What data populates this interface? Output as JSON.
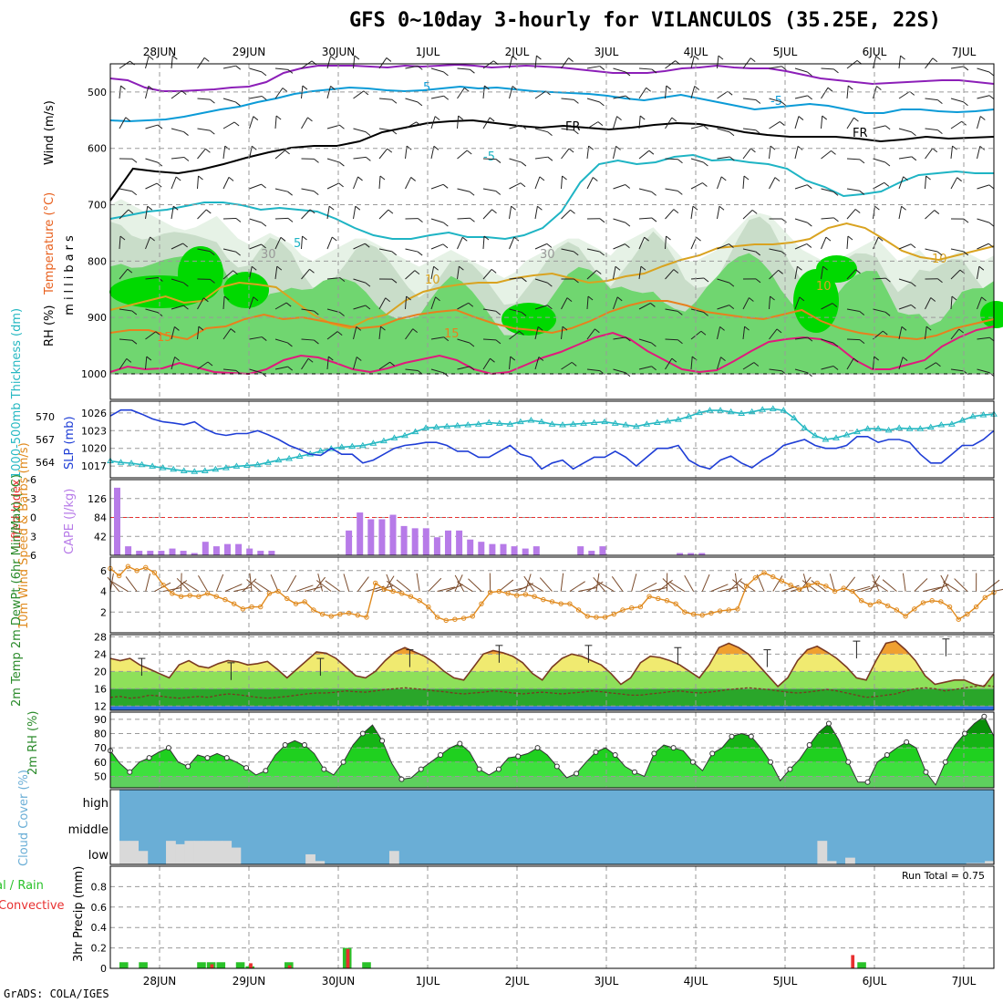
{
  "title": "GFS 0~10day 3-hourly for VILANCULOS (35.25E, 22S)",
  "credit": "GrADS: COLA/IGES",
  "dates": [
    "28JUN",
    "29JUN",
    "30JUN",
    "1JUL",
    "2JUL",
    "3JUL",
    "4JUL",
    "5JUL",
    "6JUL",
    "7JUL"
  ],
  "colors": {
    "rh_dark": "#00d900",
    "rh_mid": "#70d670",
    "rh_light": "#c9ddc9",
    "rh_pale": "#e6f2e6",
    "temp_purple": "#8c1fb8",
    "temp_blue": "#0b9bd7",
    "temp_cyan": "#1eb4c4",
    "temp_orange": "#e8801e",
    "temp_gold": "#d9a320",
    "temp_magenta": "#e0197d",
    "slp": "#1f3ed6",
    "thickness": "#26b8c2",
    "cape": "#b77be8",
    "lifted": "#e83030",
    "wind10": "#e08a1e",
    "cloud": "#6aaed6",
    "lowcloud": "#d9d9d9",
    "precip_total": "#29c229",
    "precip_conv": "#e83030"
  },
  "chart_data": [
    {
      "type": "heatmap",
      "panel": "upper-air",
      "ylabel_parts": [
        "RH (%)",
        "Temperature (°C)",
        "Wind (m/s)"
      ],
      "yunit": "millibars",
      "y_ticks": [
        500,
        600,
        700,
        800,
        900,
        1000
      ],
      "ylim": [
        450,
        1000
      ],
      "contour_labels": [
        "5",
        "-5",
        "FR",
        "FR",
        "-5",
        "5",
        "10",
        "15",
        "10",
        "15",
        "10",
        "30",
        "30"
      ]
    },
    {
      "type": "line",
      "panel": "slp-thickness",
      "ylabel_left": "1000-500mb Thickness (dm)",
      "ylabel_right": "SLP (mb)",
      "left_ticks": [
        564,
        567,
        570
      ],
      "right_ticks": [
        1017,
        1020,
        1023,
        1026
      ],
      "series": [
        {
          "name": "SLP",
          "values": [
            1025.5,
            1026.5,
            1026.5,
            1025.8,
            1025.0,
            1024.5,
            1024.3,
            1024.0,
            1024.5,
            1023.3,
            1022.5,
            1022.2,
            1022.5,
            1022.5,
            1023.0,
            1022.3,
            1021.5,
            1020.5,
            1019.8,
            1019.0,
            1018.8,
            1020.0,
            1019.0,
            1019.0,
            1017.5,
            1018.0,
            1019.0,
            1020.0,
            1020.5,
            1020.7,
            1021.0,
            1021.0,
            1020.5,
            1019.5,
            1019.5,
            1018.5,
            1018.5,
            1019.5,
            1020.5,
            1019.0,
            1018.5,
            1016.5,
            1017.5,
            1018.0,
            1016.5,
            1017.5,
            1018.5,
            1018.5,
            1019.5,
            1018.5,
            1017.0,
            1018.5,
            1020.0,
            1020.0,
            1020.5,
            1018.0,
            1017.0,
            1016.5,
            1018.0,
            1018.7,
            1017.5,
            1016.7,
            1018.0,
            1019.0,
            1020.5,
            1021.0,
            1021.5,
            1020.5,
            1020.0,
            1020.0,
            1020.5,
            1022.0,
            1022.0,
            1021.0,
            1021.5,
            1021.5,
            1021.0,
            1019.0,
            1017.5,
            1017.5,
            1019.0,
            1020.5,
            1020.5,
            1021.5,
            1023.0
          ]
        },
        {
          "name": "Thickness",
          "values": [
            564.2,
            564.0,
            563.9,
            563.7,
            563.5,
            563.3,
            563.1,
            562.9,
            562.8,
            562.9,
            563.1,
            563.3,
            563.5,
            563.6,
            563.7,
            564.0,
            564.3,
            564.5,
            564.8,
            565.1,
            565.5,
            565.8,
            566.0,
            566.1,
            566.2,
            566.5,
            566.8,
            567.2,
            567.5,
            568.0,
            568.5,
            568.6,
            568.7,
            568.8,
            568.9,
            569.0,
            569.2,
            569.1,
            569.0,
            569.3,
            569.5,
            569.3,
            569.0,
            568.9,
            569.0,
            569.1,
            569.2,
            569.3,
            569.1,
            568.9,
            568.7,
            569.0,
            569.2,
            569.4,
            569.6,
            570.0,
            570.5,
            570.8,
            570.8,
            570.6,
            570.4,
            570.6,
            570.9,
            571.0,
            570.8,
            569.8,
            568.5,
            567.5,
            567.0,
            567.2,
            567.6,
            568.0,
            568.4,
            568.4,
            568.2,
            568.5,
            568.4,
            568.4,
            568.6,
            568.9,
            569.0,
            569.5,
            570.0,
            570.2,
            570.3
          ]
        }
      ]
    },
    {
      "type": "bar",
      "panel": "cape-li",
      "ylabel_left": "Lifted Index",
      "ylabel_right": "CAPE (J/kg)",
      "left_ticks": [
        -6,
        -3,
        0,
        3,
        6
      ],
      "right_ticks": [
        42,
        84,
        126
      ],
      "cape_values": [
        150,
        20,
        10,
        10,
        10,
        15,
        10,
        5,
        30,
        20,
        25,
        25,
        15,
        10,
        10,
        0,
        0,
        0,
        0,
        0,
        0,
        55,
        95,
        80,
        80,
        90,
        65,
        60,
        60,
        40,
        55,
        55,
        35,
        30,
        25,
        25,
        20,
        15,
        20,
        0,
        0,
        0,
        20,
        10,
        20,
        0,
        0,
        0,
        0,
        0,
        0,
        5,
        5,
        5,
        0,
        0,
        0,
        0,
        0,
        0,
        0,
        0,
        0,
        0,
        0,
        0,
        0,
        0,
        0,
        0,
        0,
        0,
        0,
        0,
        0,
        0,
        0,
        0,
        0,
        0,
        0,
        0,
        0,
        0,
        0,
        0,
        0,
        0,
        0,
        0,
        0,
        0,
        0,
        0,
        0,
        0,
        0,
        0,
        0,
        0,
        0,
        0,
        0,
        0,
        0,
        0,
        0,
        0,
        0,
        0,
        0,
        0,
        0,
        0,
        0,
        0,
        0,
        0,
        0,
        0,
        0,
        0,
        25,
        20,
        0,
        0,
        0,
        0,
        0,
        0,
        0,
        0,
        0,
        0,
        0,
        0,
        0,
        0,
        0,
        0,
        0,
        0,
        0,
        0,
        0,
        0,
        0,
        0,
        0,
        0,
        0,
        0,
        0,
        0
      ],
      "li_events": [
        {
          "x": 21.0,
          "peak": 3.3
        },
        {
          "x": 21.4,
          "peak": 3.3
        },
        {
          "x": 22.0,
          "peak": 2.8
        }
      ]
    },
    {
      "type": "line",
      "panel": "wind10",
      "ylabel": "10m Wind Speed & Barbs (m/s)",
      "y_ticks": [
        2,
        4,
        6
      ],
      "ylim": [
        0,
        7
      ],
      "series": [
        {
          "name": "10m Wind Speed",
          "values": [
            6.2,
            5.5,
            6.4,
            6.0,
            6.3,
            5.8,
            4.6,
            3.8,
            3.5,
            3.6,
            3.5,
            3.8,
            3.5,
            3.2,
            2.8,
            2.3,
            2.5,
            2.5,
            3.8,
            4.0,
            3.3,
            2.8,
            3.0,
            2.2,
            1.8,
            1.6,
            1.8,
            1.9,
            1.7,
            1.5,
            4.8,
            4.2,
            4.0,
            3.8,
            3.5,
            3.1,
            2.5,
            1.5,
            1.2,
            1.3,
            1.4,
            1.6,
            2.8,
            3.9,
            4.0,
            3.8,
            3.6,
            3.7,
            3.5,
            3.2,
            3.0,
            2.8,
            2.8,
            2.2,
            1.6,
            1.5,
            1.5,
            1.8,
            2.2,
            2.4,
            2.5,
            3.5,
            3.3,
            3.1,
            2.8,
            2.0,
            1.8,
            1.7,
            1.9,
            2.1,
            2.2,
            2.3,
            4.5,
            5.3,
            5.8,
            5.4,
            5.0,
            4.6,
            4.2,
            4.6,
            4.8,
            4.5,
            4.0,
            4.3,
            4.0,
            3.1,
            2.7,
            3.0,
            2.6,
            2.2,
            1.6,
            2.3,
            2.9,
            3.1,
            3.0,
            2.5,
            1.3,
            1.8,
            2.5,
            3.4,
            3.9
          ]
        }
      ]
    },
    {
      "type": "area",
      "panel": "temp2m",
      "ylabel": "2m Temp 2m DewPt (6hr Min/Max) (°C)",
      "y_ticks": [
        12,
        16,
        20,
        24,
        28
      ],
      "ylim": [
        11,
        28.5
      ],
      "series": [
        {
          "name": "2m Temp",
          "values": [
            23,
            22.5,
            23,
            21.5,
            20.5,
            19.5,
            18.5,
            21.5,
            22.5,
            21.2,
            20.8,
            21.8,
            22.5,
            22.2,
            21.5,
            21.8,
            22.3,
            20.5,
            18.5,
            20.5,
            22.5,
            24.5,
            24.2,
            23.0,
            21.0,
            19.0,
            18.5,
            20.0,
            22.5,
            24.5,
            25.5,
            24.5,
            23.5,
            22.0,
            20.0,
            18.5,
            18.0,
            21.0,
            24.0,
            24.8,
            24.3,
            23.5,
            22.0,
            19.5,
            18.0,
            21.0,
            23.0,
            24.0,
            23.5,
            22.5,
            21.5,
            19.5,
            17.0,
            18.5,
            22.0,
            23.5,
            23.2,
            22.5,
            21.5,
            20.0,
            18.5,
            21.5,
            25.5,
            26.5,
            25.5,
            24.0,
            21.5,
            19.0,
            16.5,
            18.5,
            22.5,
            25.0,
            25.8,
            24.5,
            23.0,
            21.0,
            18.5,
            18.0,
            22.5,
            26.5,
            27.0,
            25.0,
            22.5,
            19.0,
            17.0,
            17.5,
            18.0,
            18.0,
            17.0,
            16.5,
            19.5
          ]
        },
        {
          "name": "2m DewPt",
          "values": [
            14.0,
            14.2,
            13.8,
            14.0,
            14.5,
            14.3,
            14.0,
            13.8,
            14.0,
            14.2,
            14.0,
            14.5,
            14.8,
            14.6,
            14.3,
            14.0,
            13.8,
            14.0,
            14.2,
            14.5,
            14.8,
            15.0,
            15.0,
            15.2,
            15.5,
            15.3,
            15.2,
            15.5,
            15.8,
            16.0,
            16.2,
            16.0,
            15.8,
            15.5,
            15.3,
            15.0,
            14.8,
            15.0,
            15.2,
            15.5,
            15.3,
            15.0,
            14.8,
            15.0,
            15.2,
            15.0,
            14.8,
            15.0,
            15.2,
            15.5,
            15.3,
            15.0,
            14.8,
            14.5,
            14.5,
            14.8,
            15.0,
            15.3,
            15.5,
            15.2,
            15.0,
            15.2,
            15.5,
            15.8,
            16.0,
            16.2,
            16.0,
            15.8,
            15.5,
            15.2,
            15.0,
            15.2,
            15.5,
            15.8,
            15.5,
            15.0,
            14.5,
            14.0,
            14.2,
            14.5,
            14.8,
            15.5,
            16.0,
            16.2,
            16.0,
            15.5,
            15.8,
            16.2,
            16.5,
            16.8,
            16.5
          ]
        }
      ],
      "maxmin_bars": [
        {
          "x": 0.8,
          "hi": 23.0
        },
        {
          "x": 1.8,
          "hi": 22.0
        },
        {
          "x": 2.8,
          "hi": 23.0
        },
        {
          "x": 3.8,
          "hi": 25.0
        },
        {
          "x": 4.8,
          "hi": 26.0
        },
        {
          "x": 5.8,
          "hi": 26.0
        },
        {
          "x": 6.8,
          "hi": 25.5
        },
        {
          "x": 7.8,
          "hi": 25.0
        },
        {
          "x": 8.8,
          "hi": 27.0
        },
        {
          "x": 9.8,
          "hi": 27.5
        }
      ]
    },
    {
      "type": "area",
      "panel": "rh2m",
      "ylabel": "2m RH (%)",
      "y_ticks": [
        50,
        60,
        70,
        80,
        90
      ],
      "ylim": [
        42,
        95
      ],
      "series": [
        {
          "name": "2m RH",
          "values": [
            68,
            59,
            53,
            60,
            63,
            67,
            70,
            60,
            57,
            65,
            63,
            66,
            63,
            60,
            56,
            51,
            54,
            65,
            72,
            75,
            72,
            66,
            55,
            51,
            60,
            72,
            80,
            86,
            75,
            59,
            48,
            49,
            55,
            60,
            65,
            70,
            73,
            67,
            55,
            51,
            55,
            63,
            64,
            66,
            70,
            65,
            57,
            49,
            52,
            60,
            67,
            70,
            65,
            57,
            53,
            50,
            66,
            72,
            70,
            68,
            60,
            54,
            66,
            70,
            78,
            80,
            78,
            70,
            60,
            47,
            55,
            62,
            72,
            81,
            87,
            76,
            60,
            46,
            46,
            60,
            65,
            70,
            74,
            70,
            53,
            44,
            60,
            72,
            80,
            87,
            92,
            78
          ]
        }
      ]
    },
    {
      "type": "bar",
      "panel": "cloud",
      "ylabel": "Cloud Cover (%)",
      "y_ticks": [
        "high",
        "middle",
        "low"
      ],
      "low_cloud": [
        0.35,
        0.35,
        0.2,
        0,
        0,
        0.35,
        0.3,
        0.35,
        0.35,
        0.35,
        0.35,
        0.35,
        0.25,
        0,
        0,
        0,
        0,
        0,
        0,
        0,
        0.15,
        0.05,
        0,
        0,
        0,
        0,
        0,
        0,
        0,
        0.2,
        0,
        0,
        0,
        0,
        0,
        0,
        0,
        0,
        0,
        0,
        0,
        0,
        0,
        0,
        0,
        0,
        0,
        0,
        0,
        0,
        0,
        0,
        0,
        0,
        0,
        0,
        0,
        0,
        0,
        0,
        0,
        0,
        0,
        0,
        0,
        0,
        0,
        0,
        0,
        0,
        0,
        0,
        0,
        0,
        0,
        0.35,
        0.05,
        0,
        0.1,
        0,
        0,
        0,
        0,
        0,
        0,
        0,
        0,
        0,
        0,
        0,
        0,
        0.02,
        0.02,
        0.05
      ]
    },
    {
      "type": "bar",
      "panel": "precip",
      "ylabel": "3hr Precip (mm)",
      "ylabel_left": "Total / Rain Convective",
      "y_ticks": [
        0,
        0.2,
        0.4,
        0.6,
        0.8
      ],
      "ylim": [
        0,
        1.0
      ],
      "annotation": "Run Total = 0.75",
      "total": [
        0.06,
        0,
        0.06,
        0,
        0,
        0,
        0,
        0,
        0.06,
        0.06,
        0.06,
        0,
        0.06,
        0.02,
        0,
        0,
        0,
        0.06,
        0,
        0,
        0,
        0,
        0,
        0.2,
        0,
        0.06,
        0,
        0,
        0,
        0,
        0,
        0,
        0,
        0,
        0,
        0,
        0,
        0,
        0,
        0,
        0,
        0,
        0,
        0,
        0,
        0,
        0,
        0,
        0,
        0,
        0,
        0,
        0,
        0,
        0,
        0,
        0,
        0,
        0,
        0,
        0,
        0,
        0,
        0,
        0,
        0,
        0,
        0,
        0,
        0,
        0,
        0,
        0,
        0,
        0,
        0,
        0.06,
        0,
        0,
        0,
        0,
        0,
        0,
        0,
        0,
        0,
        0,
        0,
        0,
        0,
        0
      ],
      "convective": [
        0,
        0,
        0,
        0,
        0,
        0,
        0,
        0,
        0,
        0.04,
        0,
        0,
        0,
        0.05,
        0,
        0,
        0,
        0.03,
        0,
        0,
        0,
        0,
        0,
        0.19,
        0,
        0,
        0,
        0,
        0,
        0,
        0,
        0,
        0,
        0,
        0,
        0,
        0,
        0,
        0,
        0,
        0,
        0,
        0,
        0,
        0,
        0,
        0,
        0,
        0,
        0,
        0,
        0,
        0,
        0,
        0,
        0,
        0,
        0,
        0,
        0,
        0,
        0,
        0,
        0,
        0,
        0,
        0,
        0,
        0,
        0,
        0,
        0,
        0,
        0,
        0,
        0.13,
        0,
        0,
        0,
        0,
        0,
        0,
        0,
        0,
        0,
        0,
        0,
        0,
        0,
        0,
        0
      ]
    }
  ]
}
